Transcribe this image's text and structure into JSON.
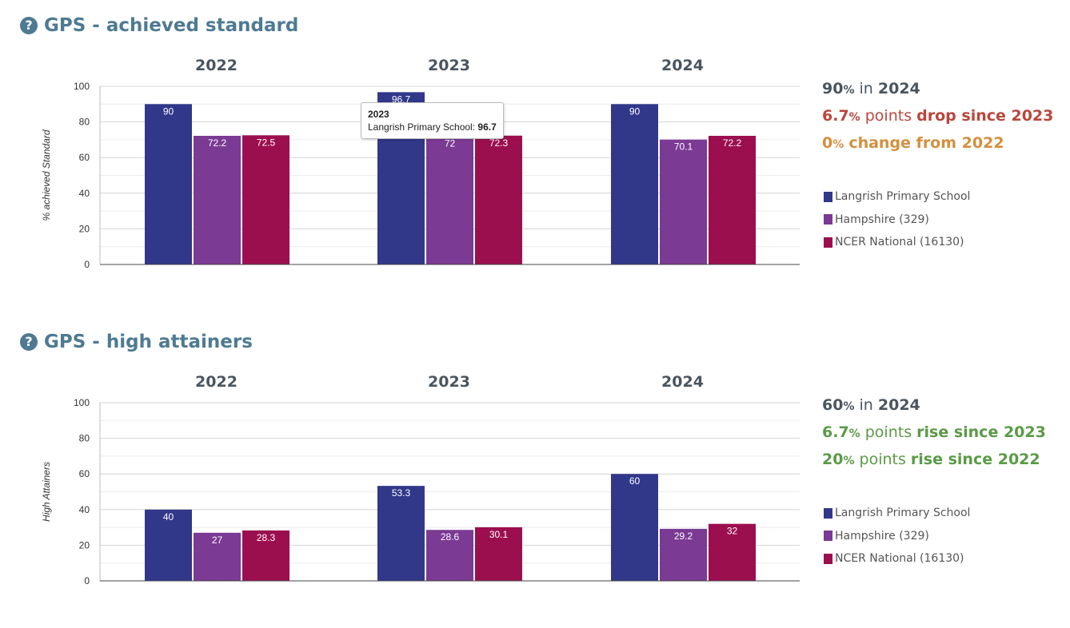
{
  "colors": {
    "school": "#31388a",
    "hampshire": "#7b3a93",
    "national": "#9b0f4f",
    "title": "#4e7a93",
    "dark": "#4a5560",
    "drop": "#b9463d",
    "neutral": "#d48f3f",
    "rise": "#5a9a46"
  },
  "sections": [
    {
      "title": "GPS - achieved standard",
      "help_icon": "question-circle-icon",
      "summary": {
        "line1": {
          "value": "90",
          "unit": "%",
          "text": " in ",
          "strong": "2024"
        },
        "line2": {
          "value": "6.7",
          "unit": "%",
          "text": " points ",
          "strong": "drop since 2023"
        },
        "line3": {
          "value": "0",
          "unit": "%",
          "text": " ",
          "strong": "change from 2022"
        }
      },
      "legend": [
        "Langrish Primary School",
        "Hampshire (329)",
        "NCER National (16130)"
      ],
      "tooltip": {
        "title": "2023",
        "label": "Langrish Primary School: ",
        "value": "96.7"
      }
    },
    {
      "title": "GPS - high attainers",
      "help_icon": "question-circle-icon",
      "summary": {
        "line1": {
          "value": "60",
          "unit": "%",
          "text": " in ",
          "strong": "2024"
        },
        "line2": {
          "value": "6.7",
          "unit": "%",
          "text": " points ",
          "strong": "rise since 2023"
        },
        "line3": {
          "value": "20",
          "unit": "%",
          "text": " points ",
          "strong": "rise since 2022"
        }
      },
      "legend": [
        "Langrish Primary School",
        "Hampshire (329)",
        "NCER National (16130)"
      ]
    }
  ],
  "chart_data": [
    {
      "type": "bar",
      "categories": [
        "2022",
        "2023",
        "2024"
      ],
      "series": [
        {
          "name": "Langrish Primary School",
          "values": [
            90,
            96.7,
            90
          ]
        },
        {
          "name": "Hampshire (329)",
          "values": [
            72.2,
            72,
            70.1
          ]
        },
        {
          "name": "NCER National (16130)",
          "values": [
            72.5,
            72.3,
            72.2
          ]
        }
      ],
      "title": "GPS - achieved standard",
      "ylabel": "% achieved Standard",
      "ylim": [
        0,
        100
      ],
      "yticks": [
        0,
        20,
        40,
        60,
        80,
        100
      ],
      "grid": true,
      "legend": "right"
    },
    {
      "type": "bar",
      "categories": [
        "2022",
        "2023",
        "2024"
      ],
      "series": [
        {
          "name": "Langrish Primary School",
          "values": [
            40,
            53.3,
            60
          ]
        },
        {
          "name": "Hampshire (329)",
          "values": [
            27,
            28.6,
            29.2
          ]
        },
        {
          "name": "NCER National (16130)",
          "values": [
            28.3,
            30.1,
            32
          ]
        }
      ],
      "title": "GPS - high attainers",
      "ylabel": "High Attainers",
      "ylim": [
        0,
        100
      ],
      "yticks": [
        0,
        20,
        40,
        60,
        80,
        100
      ],
      "grid": true,
      "legend": "right"
    }
  ]
}
